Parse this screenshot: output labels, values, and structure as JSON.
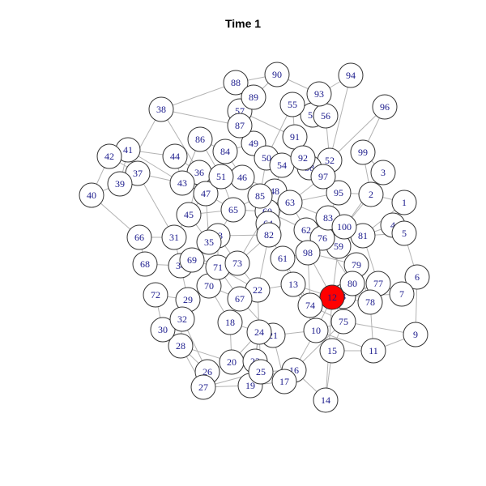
{
  "title": "Time 1",
  "colors": {
    "node_default": "#ffffff",
    "node_highlight": "#ff0000",
    "edge": "#b3b3b3",
    "label": "#1a1a8c"
  },
  "graph": {
    "highlighted_node": "12",
    "nodes": [
      "1",
      "2",
      "3",
      "4",
      "5",
      "6",
      "7",
      "8",
      "9",
      "10",
      "11",
      "12",
      "13",
      "14",
      "15",
      "16",
      "17",
      "18",
      "19",
      "20",
      "21",
      "22",
      "23",
      "24",
      "25",
      "26",
      "27",
      "28",
      "29",
      "30",
      "31",
      "32",
      "33",
      "34",
      "35",
      "36",
      "37",
      "38",
      "39",
      "40",
      "41",
      "42",
      "43",
      "44",
      "45",
      "46",
      "47",
      "48",
      "49",
      "50",
      "51",
      "52",
      "53",
      "54",
      "55",
      "56",
      "57",
      "58",
      "59",
      "60",
      "61",
      "62",
      "63",
      "64",
      "65",
      "66",
      "67",
      "68",
      "69",
      "70",
      "71",
      "72",
      "73",
      "74",
      "75",
      "76",
      "77",
      "78",
      "79",
      "80",
      "81",
      "82",
      "83",
      "84",
      "85",
      "86",
      "87",
      "88",
      "89",
      "90",
      "91",
      "92",
      "93",
      "94",
      "95",
      "96",
      "97",
      "98",
      "99",
      "100"
    ],
    "edges": [
      [
        "40",
        "39"
      ],
      [
        "40",
        "42"
      ],
      [
        "40",
        "66"
      ],
      [
        "42",
        "41"
      ],
      [
        "42",
        "37"
      ],
      [
        "41",
        "37"
      ],
      [
        "41",
        "39"
      ],
      [
        "41",
        "44"
      ],
      [
        "41",
        "43"
      ],
      [
        "39",
        "37"
      ],
      [
        "37",
        "43"
      ],
      [
        "38",
        "88"
      ],
      [
        "38",
        "87"
      ],
      [
        "38",
        "36"
      ],
      [
        "38",
        "39"
      ],
      [
        "44",
        "43"
      ],
      [
        "44",
        "36"
      ],
      [
        "43",
        "36"
      ],
      [
        "43",
        "47"
      ],
      [
        "36",
        "47"
      ],
      [
        "36",
        "51"
      ],
      [
        "47",
        "45"
      ],
      [
        "45",
        "65"
      ],
      [
        "45",
        "35"
      ],
      [
        "45",
        "31"
      ],
      [
        "31",
        "66"
      ],
      [
        "31",
        "34"
      ],
      [
        "66",
        "68"
      ],
      [
        "68",
        "34"
      ],
      [
        "34",
        "69"
      ],
      [
        "34",
        "29"
      ],
      [
        "34",
        "35"
      ],
      [
        "72",
        "29"
      ],
      [
        "29",
        "32"
      ],
      [
        "29",
        "70"
      ],
      [
        "32",
        "30"
      ],
      [
        "32",
        "28"
      ],
      [
        "30",
        "28"
      ],
      [
        "28",
        "26"
      ],
      [
        "28",
        "27"
      ],
      [
        "26",
        "27"
      ],
      [
        "26",
        "20"
      ],
      [
        "27",
        "19"
      ],
      [
        "27",
        "25"
      ],
      [
        "20",
        "23"
      ],
      [
        "20",
        "18"
      ],
      [
        "20",
        "24"
      ],
      [
        "23",
        "25"
      ],
      [
        "23",
        "24"
      ],
      [
        "25",
        "19"
      ],
      [
        "19",
        "17"
      ],
      [
        "25",
        "16"
      ],
      [
        "17",
        "16"
      ],
      [
        "17",
        "21"
      ],
      [
        "16",
        "14"
      ],
      [
        "16",
        "10"
      ],
      [
        "24",
        "21"
      ],
      [
        "24",
        "22"
      ],
      [
        "21",
        "10"
      ],
      [
        "22",
        "67"
      ],
      [
        "22",
        "13"
      ],
      [
        "22",
        "73"
      ],
      [
        "67",
        "71"
      ],
      [
        "67",
        "18"
      ],
      [
        "18",
        "70"
      ],
      [
        "70",
        "71"
      ],
      [
        "71",
        "69"
      ],
      [
        "69",
        "35"
      ],
      [
        "35",
        "33"
      ],
      [
        "33",
        "65"
      ],
      [
        "33",
        "71"
      ],
      [
        "65",
        "85"
      ],
      [
        "65",
        "60"
      ],
      [
        "60",
        "64"
      ],
      [
        "64",
        "82"
      ],
      [
        "82",
        "61"
      ],
      [
        "61",
        "98"
      ],
      [
        "98",
        "62"
      ],
      [
        "62",
        "63"
      ],
      [
        "63",
        "48"
      ],
      [
        "48",
        "85"
      ],
      [
        "85",
        "46"
      ],
      [
        "46",
        "51"
      ],
      [
        "51",
        "84"
      ],
      [
        "84",
        "86"
      ],
      [
        "84",
        "49"
      ],
      [
        "49",
        "50"
      ],
      [
        "50",
        "54"
      ],
      [
        "54",
        "92"
      ],
      [
        "92",
        "91"
      ],
      [
        "91",
        "55"
      ],
      [
        "55",
        "53"
      ],
      [
        "53",
        "93"
      ],
      [
        "93",
        "90"
      ],
      [
        "93",
        "94"
      ],
      [
        "90",
        "89"
      ],
      [
        "89",
        "88"
      ],
      [
        "89",
        "57"
      ],
      [
        "57",
        "87"
      ],
      [
        "87",
        "49"
      ],
      [
        "55",
        "56"
      ],
      [
        "56",
        "52"
      ],
      [
        "52",
        "97"
      ],
      [
        "97",
        "58"
      ],
      [
        "58",
        "92"
      ],
      [
        "97",
        "95"
      ],
      [
        "95",
        "83"
      ],
      [
        "83",
        "76"
      ],
      [
        "76",
        "59"
      ],
      [
        "59",
        "79"
      ],
      [
        "79",
        "80"
      ],
      [
        "80",
        "12"
      ],
      [
        "12",
        "74"
      ],
      [
        "12",
        "75"
      ],
      [
        "12",
        "78"
      ],
      [
        "12",
        "8"
      ],
      [
        "8",
        "80"
      ],
      [
        "78",
        "77"
      ],
      [
        "77",
        "7"
      ],
      [
        "7",
        "6"
      ],
      [
        "6",
        "5"
      ],
      [
        "5",
        "4"
      ],
      [
        "4",
        "1"
      ],
      [
        "1",
        "2"
      ],
      [
        "2",
        "3"
      ],
      [
        "3",
        "99"
      ],
      [
        "99",
        "96"
      ],
      [
        "96",
        "52"
      ],
      [
        "2",
        "100"
      ],
      [
        "100",
        "81"
      ],
      [
        "81",
        "4"
      ],
      [
        "81",
        "77"
      ],
      [
        "100",
        "83"
      ],
      [
        "100",
        "59"
      ],
      [
        "62",
        "76"
      ],
      [
        "74",
        "13"
      ],
      [
        "74",
        "98"
      ],
      [
        "75",
        "10"
      ],
      [
        "75",
        "15"
      ],
      [
        "15",
        "14"
      ],
      [
        "15",
        "11"
      ],
      [
        "11",
        "9"
      ],
      [
        "9",
        "6"
      ],
      [
        "11",
        "78"
      ],
      [
        "10",
        "13"
      ],
      [
        "13",
        "61"
      ],
      [
        "73",
        "60"
      ],
      [
        "73",
        "33"
      ],
      [
        "48",
        "54"
      ],
      [
        "54",
        "58"
      ],
      [
        "63",
        "95"
      ],
      [
        "62",
        "83"
      ],
      [
        "98",
        "79"
      ],
      [
        "94",
        "52"
      ],
      [
        "99",
        "2"
      ],
      [
        "3",
        "100"
      ],
      [
        "97",
        "63"
      ],
      [
        "50",
        "85"
      ],
      [
        "46",
        "48"
      ],
      [
        "86",
        "51"
      ],
      [
        "88",
        "90"
      ],
      [
        "57",
        "91"
      ],
      [
        "53",
        "56"
      ],
      [
        "91",
        "58"
      ],
      [
        "95",
        "2"
      ],
      [
        "81",
        "5"
      ],
      [
        "79",
        "78"
      ],
      [
        "8",
        "7"
      ],
      [
        "74",
        "75"
      ],
      [
        "16",
        "75"
      ],
      [
        "14",
        "12"
      ],
      [
        "21",
        "67"
      ],
      [
        "23",
        "17"
      ],
      [
        "19",
        "24"
      ],
      [
        "26",
        "32"
      ],
      [
        "30",
        "72"
      ],
      [
        "70",
        "67"
      ],
      [
        "69",
        "73"
      ],
      [
        "35",
        "47"
      ],
      [
        "45",
        "36"
      ],
      [
        "51",
        "65"
      ],
      [
        "64",
        "85"
      ],
      [
        "82",
        "73"
      ],
      [
        "61",
        "74"
      ],
      [
        "22",
        "82"
      ],
      [
        "13",
        "12"
      ],
      [
        "10",
        "12"
      ],
      [
        "98",
        "12"
      ],
      [
        "59",
        "12"
      ],
      [
        "76",
        "98"
      ],
      [
        "83",
        "63"
      ],
      [
        "60",
        "62"
      ],
      [
        "64",
        "63"
      ],
      [
        "92",
        "97"
      ],
      [
        "52",
        "58"
      ],
      [
        "56",
        "93"
      ],
      [
        "55",
        "50"
      ],
      [
        "84",
        "46"
      ],
      [
        "86",
        "43"
      ],
      [
        "37",
        "31"
      ],
      [
        "28",
        "20"
      ],
      [
        "24",
        "25"
      ],
      [
        "18",
        "24"
      ],
      [
        "71",
        "22"
      ],
      [
        "33",
        "82"
      ],
      [
        "47",
        "65"
      ],
      [
        "60",
        "48"
      ],
      [
        "1",
        "81"
      ],
      [
        "9",
        "75"
      ],
      [
        "11",
        "10"
      ],
      [
        "77",
        "8"
      ],
      [
        "80",
        "76"
      ]
    ]
  }
}
